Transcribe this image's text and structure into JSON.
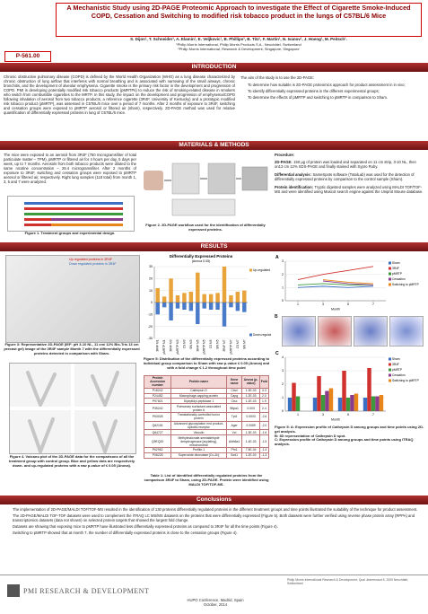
{
  "header": {
    "title": "A Mechanistic Study using 2D-PAGE Proteomic Approach to investigate the Effect of Cigarette Smoke-Induced COPD, Cessation and Switching to modified risk tobacco product in the lungs of C57BL/6 Mice",
    "authors": "S. Dijon¹, T. Schneider¹, A. Elamin¹, E. Veljkovic¹, B. Phillips², B. Titz¹, F. Martin¹, N. Ivanov¹, J. Hoeng¹, M. Peitsch¹.",
    "affiliations": [
      "¹Philip Morris International, Philip Morris Products S.A., Neuchâtel, Switzerland",
      "²Philip Morris International, Research & Development, Singapore, Singapore"
    ],
    "poster_id": "P-561.00"
  },
  "sections": {
    "introduction": "INTRODUCTION",
    "methods": "MATERIALS & METHODS",
    "results": "RESULTS",
    "conclusions": "Conclusions"
  },
  "introduction": {
    "text": "Chronic obstructive pulmonary disease (COPD) is defined by the World Health Organization (WHO) as a lung disease characterized by chronic obstruction of lung airflow that interferes with normal breathing and is associated with narrowing of the small airways, chronic bronchitis, and the development of alveolar emphysema. Cigarette smoke is the primary risk factor in the development and progression of COPD. PMI is developing potentially modified risk tobacco products (pMRTPs) to reduce the risk of smoking-related disease in smokers who switch from combustible cigarettes to the MRTP. In this study, the impact on the development and progression of emphysema/COPD following inhalation of aerosol from two tobacco products, a reference cigarette (3R4F, University of Kentucky) and a prototypic modified risk tobacco product (pMRTP), was assessed in C57BL/6 mice over a period of 7 months. After 2 months of exposure to 3R4F, switching and cessation groups were exposed to pMRTP aerosol or filtered air (sham), respectively. 2D-PAGE method was used for relative quantification of differentially expressed proteins in lung of C57BL/6 mice.",
    "aim": "The aim of the study is to use the 2D-PAGE:",
    "aim_points": [
      "To determine how suitable is 2D-PAGE proteomics approach for product assessment in in vivo;",
      "To identify differentially expressed proteins in the different experimental groups;",
      "To determine the effects of pMRTP and switching to pMRTP in comparison to Sham."
    ]
  },
  "methods": {
    "text": "The mice were exposed to an aerosol from 3R4F (750 micrograms/liter of total particulate matter – TPM), pMRTP or filtered air for 4 hours per day, 5 days per week, up to 7 months. Aerosols from both tobacco products were diluted to the same nicotine concentration – 29.4 micrograms/liter. After 2 months of exposure to 3R4F, switching and cessation groups were exposed to pMRTP aerosol or filtered air, respectively. Right lung samples (118 total) from month 1, 3, 5 and 7 were analyzed.",
    "figure1_caption": "Figure 1. Treatment groups and experimental design.",
    "figure2_caption": "Figure 2. 2D-PAGE workflow used for the identification of differentially expressed proteins.",
    "procedure_title": "Procedure:",
    "procedure": [
      {
        "label": "2D-PAGE:",
        "text": "150 µg of protein was loaded and separated on 11 cm strip, 3-10 NL, then on13 cm 12% SDS-PAGE and finally stained with Sypro Ruby."
      },
      {
        "label": "Differential analysis:",
        "text": "SameSpots software (TotalLab) was used for the detection of differentially expressed proteins by comparison to the control sample (Sham)."
      },
      {
        "label": "Protein identification:",
        "text": "Tryptic digested samples were analyzed using MALDI TOF/TOF-MS and were identified using Mascot search engine against the Uniprot Mouse database."
      }
    ]
  },
  "results": {
    "gel_legend": [
      "Up regulated proteins in 3R4F",
      "Down regulated proteins in 3R4F"
    ],
    "figure3_caption": "Figure 3: Representative 2D-PAGE (IEF: pH 3-10 NL, 11 cm/ 12% Bis-Tris 13 cm precast gel) image of the 3R4F sample Month 7 with the differentially expressed proteins detected in comparison with Sham.",
    "figure4_caption": "Figure 4. Volcano plot of the 2D-PAGE data for the comparisons of all the treatment group with control group. Blue and yellow dots are respectively down- and up-regulated proteins with a raw p-value of ≤ 0.05 (Anova).",
    "figure5_caption": "Figure 5: Distribution of the differentially expressed proteins according to individual group comparison to Sham with raw p-value ≤ 0.05 (Anova) and with a fold change ≤ 1.2 throughout time point",
    "table_caption": "Table 1: List of identified differentially regulated proteins from the comparison 3R4F to Sham, using 2D-PAGE. Protein were identified using MALDI TOF/TOF-MS.",
    "panel_b": "B",
    "figure5_right_caption": [
      "Figure 5: A: Expression profile of Cathepsin D among groups and time points using 2D-gel analysis.",
      "B: 3D representation of Cathepsin D spot.",
      "C: Expression profile of Cathepsin D among groups and time points using iTRAQ analysis."
    ]
  },
  "table": {
    "columns": [
      "Protein Accession number",
      "Protein name",
      "Gene name",
      "Anova (p-value)",
      "Fold"
    ],
    "rows": [
      [
        "P18242",
        "Cathepsin D",
        "Ctsd",
        "1.3E-03",
        "3.3"
      ],
      [
        "P24452",
        "Macrophage-capping protein",
        "Capg",
        "1.2E-03",
        "2.0"
      ],
      [
        "P97821",
        "Dipeptidyl-peptidase 1",
        "Ctsc",
        "1.2E-03",
        "1.9"
      ],
      [
        "P35242",
        "Pulmonary surfactant-associated protein A",
        "Sftpa1",
        "0.003",
        "2.4"
      ],
      [
        "P63028",
        "Translationally-controlled tumor protein",
        "Tpt1",
        "0.0003",
        "-2.6"
      ],
      [
        "Q62151",
        "Advanced glycosylation end product-specific receptor",
        "Ager",
        "0.0089",
        "-2.0"
      ],
      [
        "Q64727",
        "Vinculin",
        "Vcl",
        "1.3E-03",
        "-1.6"
      ],
      [
        "Q9EQ20",
        "Methylmalonate-semialdehyde dehydrogenase [acylating], mitochondrial",
        "Aldh6a1",
        "1.4E-03",
        "-1.5"
      ],
      [
        "P62962",
        "Profilin-1",
        "Pfn1",
        "7.5E-04",
        "-1.4"
      ],
      [
        "P08228",
        "Superoxide dismutase [Cu-Zn]",
        "Sod1",
        "1.2E-03",
        "-1.3"
      ]
    ]
  },
  "chart_data": [
    {
      "type": "bar",
      "title": "Differentially Expressed Proteins",
      "subtitle": "(Anova 0.05)",
      "categories": [
        "3R4F M1",
        "pMRTP M1",
        "3R4F M3",
        "pMRTP M3",
        "CS M3",
        "SW M3",
        "3R4F M5",
        "pMRTP M5",
        "CS M5",
        "SW M5",
        "3R4F M7",
        "pMRTP M7",
        "CS M7",
        "SW M7"
      ],
      "series": [
        {
          "name": "Up-regulated",
          "color": "#e8a33a",
          "values": [
            12,
            5,
            20,
            6,
            8,
            9,
            25,
            7,
            7,
            8,
            30,
            6,
            9,
            10
          ]
        },
        {
          "name": "Down-regulated",
          "color": "#4a7bc8",
          "values": [
            -10,
            -4,
            -15,
            -5,
            -6,
            -7,
            -18,
            -5,
            -6,
            -6,
            -20,
            -4,
            -7,
            -8
          ]
        }
      ],
      "ylim": [
        -30,
        30
      ],
      "yticks": [
        -30,
        -20,
        -10,
        0,
        10,
        20,
        30
      ],
      "grid": true
    },
    {
      "type": "line",
      "panel": "A",
      "x": [
        1,
        3,
        5,
        7
      ],
      "xlim": [
        0,
        8
      ],
      "xticks": [
        1,
        3,
        5,
        7
      ],
      "x_label": "Month",
      "ylim": [
        0,
        3
      ],
      "yticks": [
        0,
        1,
        2,
        3
      ],
      "grid": true,
      "legend": "right",
      "series": [
        {
          "name": "Sham",
          "color": "#3b6fc4",
          "values": [
            1.0,
            1.1,
            1.0,
            1.1
          ]
        },
        {
          "name": "3R4F",
          "color": "#d0312d",
          "values": [
            1.6,
            2.0,
            2.3,
            2.6
          ]
        },
        {
          "name": "pMRTP",
          "color": "#3c9a3c",
          "values": [
            1.2,
            1.3,
            1.2,
            1.2
          ]
        },
        {
          "name": "Cessation",
          "color": "#8a3c8a",
          "values": [
            null,
            1.5,
            1.3,
            1.2
          ]
        },
        {
          "name": "Switching to pMRTP",
          "color": "#e8861a",
          "values": [
            null,
            1.6,
            1.4,
            1.3
          ]
        }
      ]
    },
    {
      "type": "bar",
      "panel": "C",
      "categories": [
        "1",
        "3",
        "5",
        "7"
      ],
      "x_label": "Month",
      "ylim": [
        0,
        4
      ],
      "yticks": [
        0,
        1,
        2,
        3,
        4
      ],
      "grid": true,
      "legend": "right",
      "series": [
        {
          "name": "Sham",
          "color": "#3b6fc4",
          "values": [
            1.0,
            1.0,
            1.0,
            1.0
          ]
        },
        {
          "name": "3R4F",
          "color": "#d0312d",
          "values": [
            2.1,
            2.6,
            3.0,
            3.2
          ]
        },
        {
          "name": "pMRTP",
          "color": "#3c9a3c",
          "values": [
            1.1,
            1.2,
            1.0,
            1.1
          ]
        },
        {
          "name": "Cessation",
          "color": "#8a3c8a",
          "values": [
            null,
            1.5,
            1.2,
            1.1
          ]
        },
        {
          "name": "Switching to pMRTP",
          "color": "#e8861a",
          "values": [
            null,
            1.7,
            1.3,
            1.2
          ]
        }
      ]
    }
  ],
  "conclusions": [
    "The implementation of 2D-PAGE/MALDI TOF/TOF-MS resulted in the identification of 130 proteins differentially regulated proteins in the different treatment groups and time points illustrated the suitability of the technique for product assessment.",
    "The 2D-PAGE/MALDI TOF-TOF datasets were used to complement the iTRAQ LC MS/MS datasets on the proteins that were differentially expressed (Figure 5). Both datasets were further verified using reverse phase protein array (RPPA) and transcriptomics datasets (data not shown) on selected protein targets that showed the largest fold change.",
    "Datasets are showing that exposing mice to pMRTP have illustrated less differentially expressed proteins as compared to 3R4F for all the time points (Figure 4).",
    "Switching to pMRTP showed that at month 7, the number of differentially expressed proteins is close to the cessation groups (Figure 4)."
  ],
  "footer": {
    "brand": "PMI RESEARCH & DEVELOPMENT",
    "address": "Philip Morris International Research & Development, Quai Jeanrenaud 5, 2000 Neuchâtel, Switzerland",
    "conference": "HUPO Conference, Madrid, Spain",
    "date": "October, 2014"
  }
}
